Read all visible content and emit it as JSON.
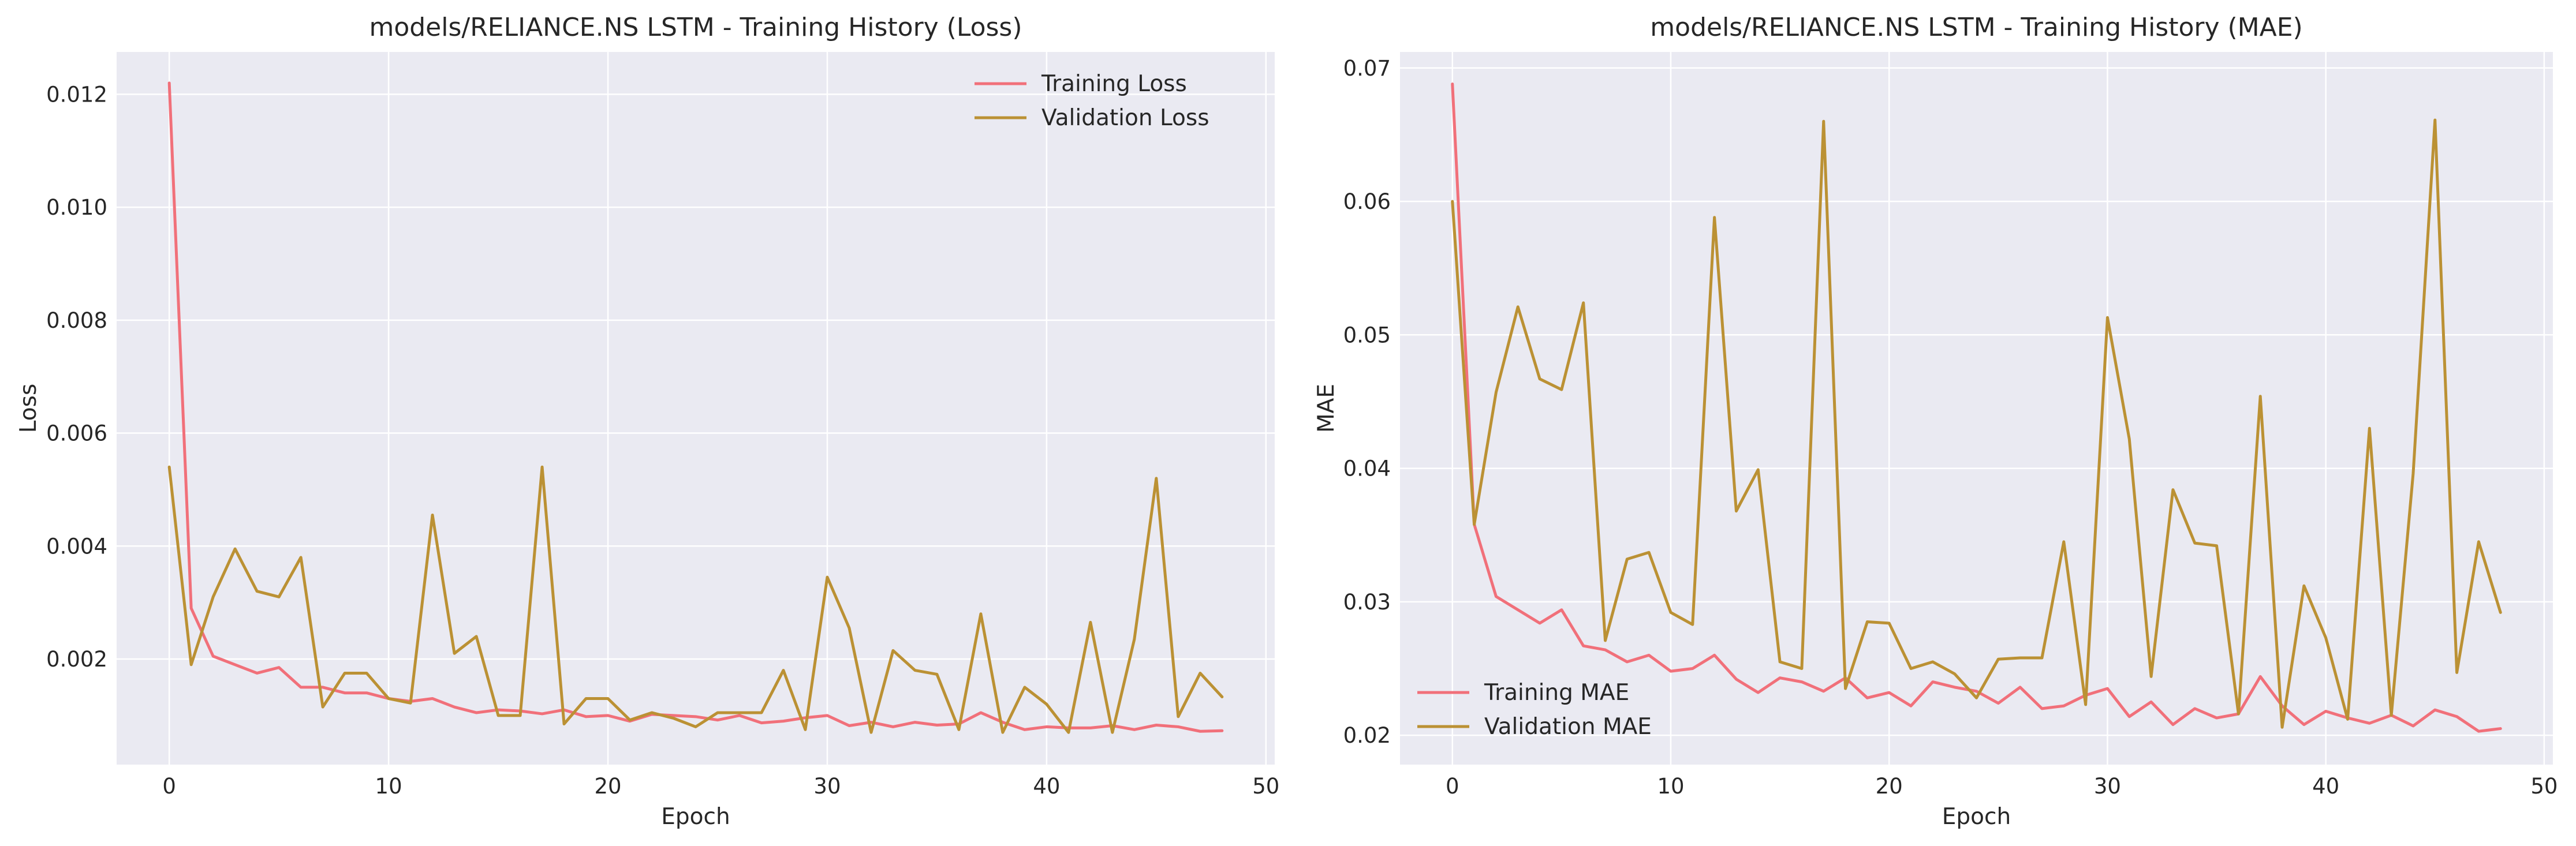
{
  "figure": {
    "background": "#ffffff",
    "axes_face": "#eaeaf2",
    "grid_color": "#ffffff"
  },
  "chart_data": [
    {
      "type": "line",
      "title": "models/RELIANCE.NS LSTM - Training History (Loss)",
      "xlabel": "Epoch",
      "ylabel": "Loss",
      "xlim": [
        -2.4,
        50.4
      ],
      "ylim": [
        0.00013,
        0.01275
      ],
      "xticks": [
        0,
        10,
        20,
        30,
        40,
        50
      ],
      "xtick_labels": [
        "0",
        "10",
        "20",
        "30",
        "40",
        "50"
      ],
      "yticks": [
        0.002,
        0.004,
        0.006,
        0.008,
        0.01,
        0.012
      ],
      "ytick_labels": [
        "0.002",
        "0.004",
        "0.006",
        "0.008",
        "0.010",
        "0.012"
      ],
      "grid": true,
      "legend_position": "top-right",
      "x": [
        0,
        1,
        2,
        3,
        4,
        5,
        6,
        7,
        8,
        9,
        10,
        11,
        12,
        13,
        14,
        15,
        16,
        17,
        18,
        19,
        20,
        21,
        22,
        23,
        24,
        25,
        26,
        27,
        28,
        29,
        30,
        31,
        32,
        33,
        34,
        35,
        36,
        37,
        38,
        39,
        40,
        41,
        42,
        43,
        44,
        45,
        46,
        47,
        48
      ],
      "series": [
        {
          "name": "Training Loss",
          "color": "#f1707a",
          "values": [
            0.0122,
            0.0029,
            0.00205,
            0.0019,
            0.00175,
            0.00185,
            0.0015,
            0.0015,
            0.0014,
            0.0014,
            0.0013,
            0.00125,
            0.0013,
            0.00115,
            0.00105,
            0.0011,
            0.00108,
            0.00103,
            0.0011,
            0.00098,
            0.001,
            0.0009,
            0.00102,
            0.001,
            0.00098,
            0.00092,
            0.001,
            0.00087,
            0.0009,
            0.00096,
            0.001,
            0.00082,
            0.00088,
            0.0008,
            0.00088,
            0.00083,
            0.00085,
            0.00105,
            0.00088,
            0.00075,
            0.0008,
            0.00078,
            0.00078,
            0.00082,
            0.00075,
            0.00083,
            0.0008,
            0.00072,
            0.00073
          ]
        },
        {
          "name": "Validation Loss",
          "color": "#bb9134",
          "values": [
            0.0054,
            0.0019,
            0.0031,
            0.00395,
            0.0032,
            0.0031,
            0.0038,
            0.00115,
            0.00175,
            0.00175,
            0.0013,
            0.00122,
            0.00455,
            0.0021,
            0.0024,
            0.001,
            0.001,
            0.0054,
            0.00085,
            0.0013,
            0.0013,
            0.00092,
            0.00105,
            0.00095,
            0.0008,
            0.00105,
            0.00105,
            0.00105,
            0.0018,
            0.00075,
            0.00345,
            0.00255,
            0.0007,
            0.00215,
            0.0018,
            0.00173,
            0.00075,
            0.0028,
            0.0007,
            0.0015,
            0.0012,
            0.0007,
            0.00265,
            0.0007,
            0.00235,
            0.0052,
            0.00098,
            0.00175,
            0.00133
          ]
        }
      ]
    },
    {
      "type": "line",
      "title": "models/RELIANCE.NS LSTM - Training History (MAE)",
      "xlabel": "Epoch",
      "ylabel": "MAE",
      "xlim": [
        -2.4,
        50.4
      ],
      "ylim": [
        0.0178,
        0.0712
      ],
      "xticks": [
        0,
        10,
        20,
        30,
        40,
        50
      ],
      "xtick_labels": [
        "0",
        "10",
        "20",
        "30",
        "40",
        "50"
      ],
      "yticks": [
        0.02,
        0.03,
        0.04,
        0.05,
        0.06,
        0.07
      ],
      "ytick_labels": [
        "0.02",
        "0.03",
        "0.04",
        "0.05",
        "0.06",
        "0.07"
      ],
      "grid": true,
      "legend_position": "bottom-left",
      "x": [
        0,
        1,
        2,
        3,
        4,
        5,
        6,
        7,
        8,
        9,
        10,
        11,
        12,
        13,
        14,
        15,
        16,
        17,
        18,
        19,
        20,
        21,
        22,
        23,
        24,
        25,
        26,
        27,
        28,
        29,
        30,
        31,
        32,
        33,
        34,
        35,
        36,
        37,
        38,
        39,
        40,
        41,
        42,
        43,
        44,
        45,
        46,
        47,
        48
      ],
      "series": [
        {
          "name": "Training MAE",
          "color": "#f1707a",
          "values": [
            0.0688,
            0.0358,
            0.0304,
            0.0294,
            0.0284,
            0.0294,
            0.0267,
            0.0264,
            0.0255,
            0.026,
            0.0248,
            0.025,
            0.026,
            0.0242,
            0.0232,
            0.0243,
            0.024,
            0.0233,
            0.0243,
            0.0228,
            0.0232,
            0.0222,
            0.024,
            0.0236,
            0.0233,
            0.0224,
            0.0236,
            0.022,
            0.0222,
            0.023,
            0.0235,
            0.0214,
            0.0225,
            0.0208,
            0.022,
            0.0213,
            0.0216,
            0.0244,
            0.0222,
            0.0208,
            0.0218,
            0.0213,
            0.0209,
            0.0215,
            0.0207,
            0.0219,
            0.0214,
            0.0203,
            0.0205
          ]
        },
        {
          "name": "Validation MAE",
          "color": "#bb9134",
          "values": [
            0.06,
            0.0358,
            0.0457,
            0.0521,
            0.0467,
            0.0459,
            0.0524,
            0.0271,
            0.0332,
            0.0337,
            0.0292,
            0.0283,
            0.0588,
            0.0368,
            0.0399,
            0.0255,
            0.025,
            0.066,
            0.0235,
            0.0285,
            0.0284,
            0.025,
            0.0255,
            0.0246,
            0.0228,
            0.0257,
            0.0258,
            0.0258,
            0.0345,
            0.0223,
            0.0513,
            0.0422,
            0.0244,
            0.0384,
            0.0344,
            0.0342,
            0.0216,
            0.0454,
            0.0206,
            0.0312,
            0.0273,
            0.0212,
            0.043,
            0.0215,
            0.0396,
            0.0661,
            0.0247,
            0.0345,
            0.0292
          ]
        }
      ]
    }
  ]
}
